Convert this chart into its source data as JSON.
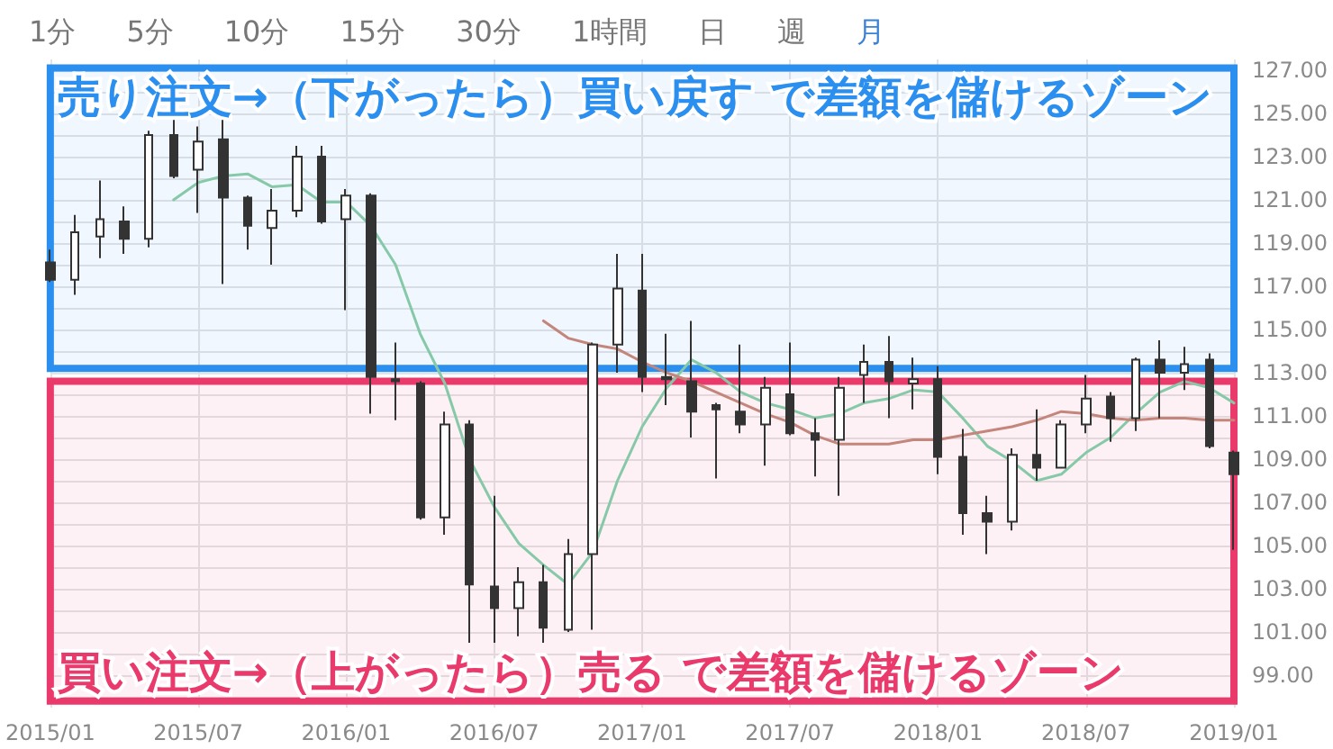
{
  "chart_data": {
    "type": "candlestick",
    "categories": [
      "2015/01",
      null,
      null,
      null,
      null,
      null,
      "2015/07",
      null,
      null,
      null,
      null,
      null,
      "2016/01",
      null,
      null,
      null,
      null,
      null,
      "2016/07",
      null,
      null,
      null,
      null,
      null,
      "2017/01",
      null,
      null,
      null,
      null,
      null,
      "2017/07",
      null,
      null,
      null,
      null,
      null,
      "2018/01",
      null,
      null,
      null,
      null,
      null,
      "2018/07",
      null,
      null,
      null,
      null,
      null,
      "2019/01"
    ],
    "ohlc": [
      [
        118.1,
        118.7,
        117.2,
        117.3
      ],
      [
        117.3,
        120.3,
        116.6,
        119.5
      ],
      [
        119.3,
        121.9,
        118.3,
        120.1
      ],
      [
        120.0,
        120.7,
        118.5,
        119.2
      ],
      [
        119.2,
        124.2,
        118.8,
        124.0
      ],
      [
        124.0,
        124.7,
        122.0,
        122.1
      ],
      [
        122.4,
        124.4,
        120.4,
        123.7
      ],
      [
        123.8,
        124.7,
        117.1,
        121.1
      ],
      [
        121.1,
        121.2,
        118.7,
        119.8
      ],
      [
        119.7,
        121.5,
        118.0,
        120.5
      ],
      [
        120.5,
        123.5,
        120.2,
        123.0
      ],
      [
        123.0,
        123.5,
        119.9,
        120.0
      ],
      [
        120.1,
        121.5,
        115.9,
        121.2
      ],
      [
        121.2,
        121.3,
        111.1,
        112.8
      ],
      [
        112.7,
        114.4,
        110.8,
        112.6
      ],
      [
        112.5,
        112.6,
        106.2,
        106.3
      ],
      [
        106.3,
        111.2,
        105.5,
        110.6
      ],
      [
        110.6,
        110.8,
        100.5,
        103.2
      ],
      [
        103.1,
        107.3,
        100.5,
        102.1
      ],
      [
        102.1,
        104.0,
        100.8,
        103.3
      ],
      [
        103.3,
        104.1,
        100.5,
        101.2
      ],
      [
        101.1,
        105.3,
        101.0,
        104.6
      ],
      [
        104.6,
        114.4,
        101.1,
        114.3
      ],
      [
        114.3,
        118.5,
        113.0,
        116.9
      ],
      [
        116.8,
        118.5,
        112.1,
        112.8
      ],
      [
        112.8,
        114.8,
        111.5,
        112.7
      ],
      [
        112.6,
        115.4,
        110.0,
        111.2
      ],
      [
        111.5,
        111.6,
        108.1,
        111.3
      ],
      [
        111.2,
        114.3,
        110.2,
        110.6
      ],
      [
        110.6,
        112.8,
        108.7,
        112.3
      ],
      [
        112.0,
        114.4,
        110.1,
        110.2
      ],
      [
        110.2,
        110.9,
        108.2,
        109.9
      ],
      [
        109.9,
        112.8,
        107.3,
        112.3
      ],
      [
        112.9,
        114.3,
        111.6,
        113.5
      ],
      [
        113.5,
        114.7,
        110.9,
        112.6
      ],
      [
        112.5,
        113.7,
        111.3,
        112.7
      ],
      [
        112.7,
        113.3,
        108.3,
        109.1
      ],
      [
        109.1,
        110.4,
        105.5,
        106.5
      ],
      [
        106.5,
        107.3,
        104.6,
        106.1
      ],
      [
        106.1,
        109.5,
        105.7,
        109.2
      ],
      [
        109.2,
        111.3,
        108.0,
        108.6
      ],
      [
        108.6,
        110.8,
        108.6,
        110.6
      ],
      [
        110.6,
        112.9,
        110.2,
        111.8
      ],
      [
        111.9,
        112.1,
        109.8,
        110.9
      ],
      [
        110.9,
        113.7,
        110.3,
        113.6
      ],
      [
        113.6,
        114.5,
        110.9,
        113.0
      ],
      [
        113.0,
        114.2,
        112.2,
        113.4
      ],
      [
        113.6,
        113.9,
        109.5,
        109.6
      ],
      [
        109.3,
        109.4,
        104.8,
        108.3
      ]
    ],
    "color": "#333333",
    "series": [
      {
        "type": "line",
        "color": "#86c9a8",
        "values": [
          null,
          null,
          null,
          null,
          null,
          121.0,
          121.8,
          122.1,
          122.2,
          121.6,
          121.7,
          120.9,
          120.9,
          119.8,
          118.0,
          114.8,
          112.5,
          109.0,
          106.8,
          105.1,
          104.1,
          103.2,
          104.7,
          108.0,
          110.5,
          112.3,
          113.6,
          113.0,
          112.1,
          111.6,
          111.3,
          110.9,
          111.1,
          111.6,
          111.8,
          112.2,
          112.1,
          110.9,
          109.6,
          108.9,
          108.0,
          108.3,
          109.3,
          110.0,
          111.1,
          112.1,
          112.6,
          112.3,
          111.6
        ]
      },
      {
        "type": "line",
        "color": "#c4857a",
        "values": [
          null,
          null,
          null,
          null,
          null,
          null,
          null,
          null,
          null,
          null,
          null,
          null,
          null,
          null,
          null,
          null,
          null,
          null,
          null,
          null,
          115.4,
          114.6,
          114.3,
          114.1,
          113.5,
          113.0,
          112.6,
          112.1,
          111.6,
          111.1,
          110.7,
          110.1,
          109.7,
          109.7,
          109.7,
          109.9,
          109.9,
          110.1,
          110.3,
          110.5,
          110.8,
          111.2,
          111.1,
          110.9,
          110.8,
          110.9,
          110.9,
          110.8,
          110.8
        ]
      }
    ],
    "ylim": [
      97.5,
      127.5
    ],
    "yticks": [
      {
        "value": 98,
        "label": null
      },
      {
        "value": 99,
        "label": "99.00"
      },
      {
        "value": 100,
        "label": null
      },
      {
        "value": 101,
        "label": "101.00"
      },
      {
        "value": 102,
        "label": null
      },
      {
        "value": 103,
        "label": "103.00"
      },
      {
        "value": 104,
        "label": null
      },
      {
        "value": 105,
        "label": "105.00"
      },
      {
        "value": 106,
        "label": null
      },
      {
        "value": 107,
        "label": "107.00"
      },
      {
        "value": 108,
        "label": null
      },
      {
        "value": 109,
        "label": "109.00"
      },
      {
        "value": 110,
        "label": null
      },
      {
        "value": 111,
        "label": "111.00"
      },
      {
        "value": 112,
        "label": null
      },
      {
        "value": 113,
        "label": "113.00"
      },
      {
        "value": 114,
        "label": null
      },
      {
        "value": 115,
        "label": "115.00"
      },
      {
        "value": 116,
        "label": null
      },
      {
        "value": 117,
        "label": "117.00"
      },
      {
        "value": 118,
        "label": null
      },
      {
        "value": 119,
        "label": "119.00"
      },
      {
        "value": 120,
        "label": null
      },
      {
        "value": 121,
        "label": "121.00"
      },
      {
        "value": 122,
        "label": null
      },
      {
        "value": 123,
        "label": "123.00"
      },
      {
        "value": 124,
        "label": null
      },
      {
        "value": 125,
        "label": "125.00"
      },
      {
        "value": 126,
        "label": null
      },
      {
        "value": 127,
        "label": "127.00"
      }
    ],
    "grid": true,
    "marker": "none",
    "bands": [
      {
        "axis": "y",
        "from": 113.2,
        "to": 127.1,
        "label": "売り注文→（下がったら）買い戻す で差額を儲けるゾーン",
        "color": "#2b8ff0"
      },
      {
        "axis": "y",
        "from": 97.8,
        "to": 112.6,
        "label": "買い注文→（上がったら）売る で差額を儲けるゾーン",
        "color": "#ea3a6c"
      }
    ],
    "annotations": [
      "1分",
      "5分",
      "10分",
      "15分",
      "30分",
      "1時間",
      "日",
      "週",
      "月"
    ]
  }
}
